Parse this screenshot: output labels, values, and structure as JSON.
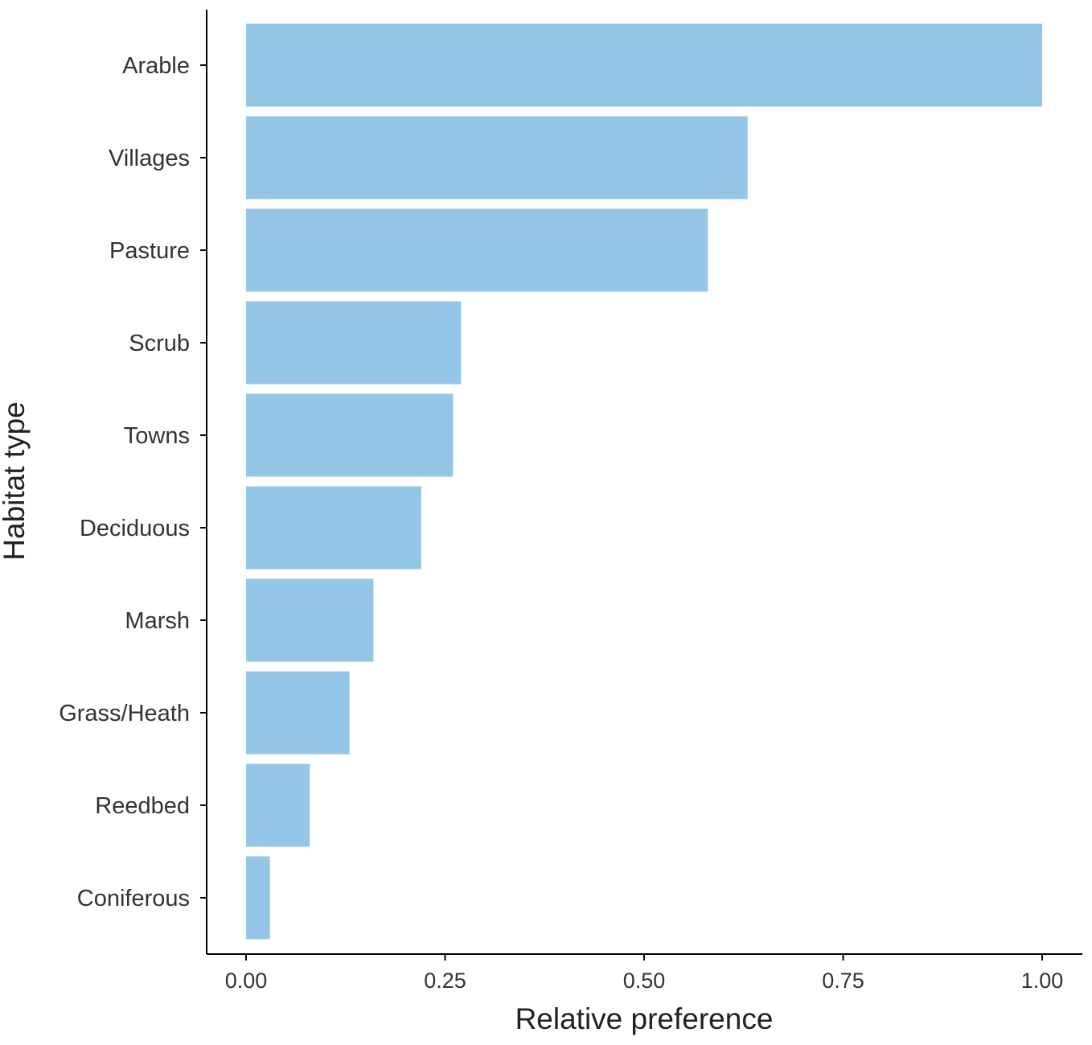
{
  "chart_data": {
    "type": "bar",
    "orientation": "horizontal",
    "categories": [
      "Arable",
      "Villages",
      "Pasture",
      "Scrub",
      "Towns",
      "Deciduous",
      "Marsh",
      "Grass/Heath",
      "Reedbed",
      "Coniferous"
    ],
    "values": [
      1.0,
      0.63,
      0.58,
      0.27,
      0.26,
      0.22,
      0.16,
      0.13,
      0.08,
      0.03
    ],
    "xlabel": "Relative preference",
    "ylabel": "Habitat type",
    "xlim": [
      0,
      1
    ],
    "xticks": [
      "0.00",
      "0.25",
      "0.50",
      "0.75",
      "1.00"
    ],
    "xtick_values": [
      0,
      0.25,
      0.5,
      0.75,
      1.0
    ],
    "grid": false,
    "bar_color": "#93c6e7"
  }
}
